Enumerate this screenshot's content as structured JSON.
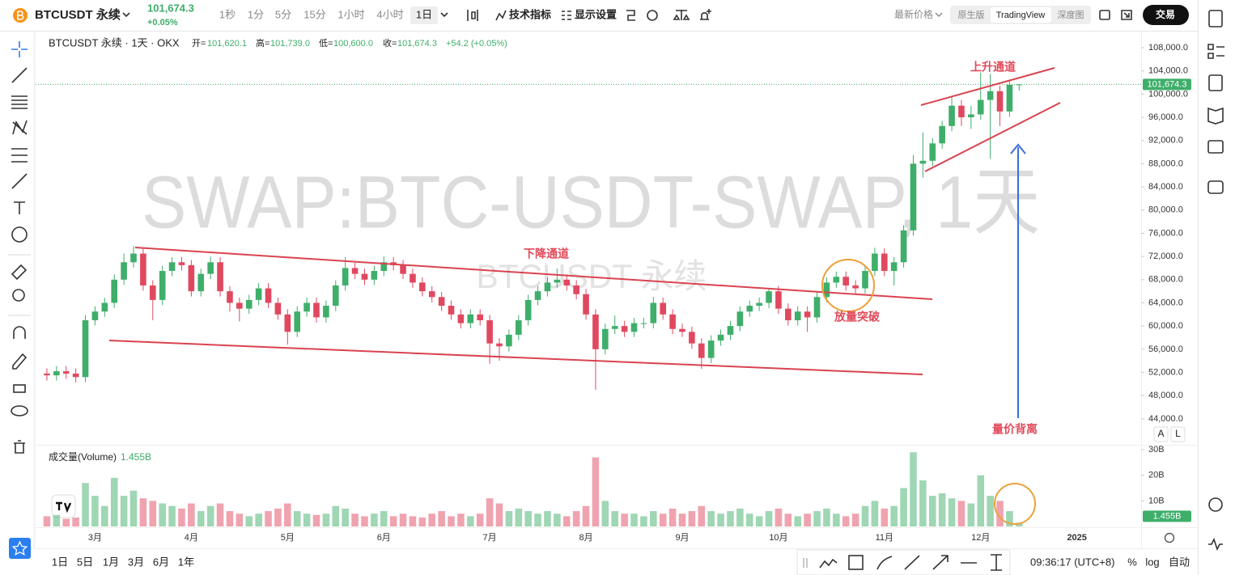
{
  "header": {
    "symbol": "BTCUSDT 永续",
    "price": "101,674.3",
    "change": "+0.05%",
    "intervals": [
      "1秒",
      "1分",
      "5分",
      "15分",
      "1小时",
      "4小时",
      "1日"
    ],
    "indicators": "技术指标",
    "display_settings": "显示设置",
    "price_type": "最新价格",
    "views": [
      "原生版",
      "TradingView",
      "深度图"
    ],
    "trade": "交易"
  },
  "footer": {
    "ranges": [
      "1日",
      "5日",
      "1月",
      "3月",
      "6月",
      "1年"
    ],
    "time": "09:36:17 (UTC+8)",
    "percent": "%",
    "log": "log",
    "auto": "自动"
  },
  "chart_data": {
    "type": "candlestick",
    "legend": {
      "title": "BTCUSDT 永续 · 1天 · OKX",
      "fields": [
        {
          "label": "开=",
          "value": "101,620.1"
        },
        {
          "label": "高=",
          "value": "101,739.0"
        },
        {
          "label": "低=",
          "value": "100,600.0"
        },
        {
          "label": "收=",
          "value": "101,674.3"
        }
      ],
      "change": "+54.2 (+0.05%)"
    },
    "watermark": [
      "SWAP:BTC-USDT-SWAP, 1天",
      "BTCUSDT 永续"
    ],
    "annotations": {
      "rising_channel": "上升通道",
      "falling_channel": "下降通道",
      "volume_breakout": "放量突破",
      "divergence": "量价背离"
    },
    "scale_buttons": [
      "A",
      "L"
    ],
    "up_color": "#3fae6a",
    "down_color": "#e0485f",
    "categories": [
      null,
      null,
      null,
      null,
      null,
      "3月",
      null,
      null,
      null,
      null,
      null,
      null,
      null,
      null,
      null,
      "4月",
      null,
      null,
      null,
      null,
      null,
      null,
      null,
      null,
      null,
      "5月",
      null,
      null,
      null,
      null,
      null,
      null,
      null,
      null,
      null,
      "6月",
      null,
      null,
      null,
      null,
      null,
      null,
      null,
      null,
      null,
      null,
      "7月",
      null,
      null,
      null,
      null,
      null,
      null,
      null,
      null,
      null,
      "8月",
      null,
      null,
      null,
      null,
      null,
      null,
      null,
      null,
      null,
      "9月",
      null,
      null,
      null,
      null,
      null,
      null,
      null,
      null,
      null,
      "10月",
      null,
      null,
      null,
      null,
      null,
      null,
      null,
      null,
      null,
      null,
      "11月",
      null,
      null,
      null,
      null,
      null,
      null,
      null,
      null,
      null,
      "12月",
      null,
      null,
      null,
      null,
      null,
      null,
      null,
      null,
      null,
      "2025",
      null,
      null,
      null,
      null,
      null,
      null
    ],
    "open": [
      51800,
      51500,
      52200,
      51800,
      51200,
      61000,
      62500,
      64000,
      68000,
      71000,
      72500,
      67000,
      64500,
      69500,
      71000,
      70500,
      66000,
      69000,
      71000,
      66000,
      64000,
      63000,
      64500,
      66500,
      64000,
      62000,
      59000,
      62500,
      64000,
      61500,
      63500,
      67000,
      70000,
      69000,
      68000,
      69500,
      71000,
      70500,
      69000,
      67500,
      66000,
      65000,
      63500,
      62000,
      60500,
      62000,
      61000,
      57000,
      56500,
      58500,
      61000,
      64500,
      66000,
      67500,
      68000,
      67000,
      65500,
      62000,
      56000,
      59500,
      60000,
      59000,
      60500,
      60500,
      64000,
      62000,
      59500,
      59000,
      57000,
      54500,
      57500,
      58500,
      60000,
      62500,
      63500,
      64000,
      66000,
      63000,
      61000,
      62500,
      61500,
      65000,
      67500,
      68500,
      67000,
      66500,
      69500,
      72500,
      69500,
      71000,
      76500,
      88000,
      88500,
      91500,
      94500,
      98000,
      96000,
      96500,
      99000,
      100500,
      97000,
      101620.1,
      null,
      null,
      null,
      null,
      null,
      null,
      null,
      null,
      null,
      null,
      null,
      null
    ],
    "high": [
      52700,
      53100,
      53100,
      52700,
      61900,
      63400,
      64900,
      68900,
      72500,
      73800,
      73400,
      67900,
      70400,
      71900,
      71900,
      71400,
      69900,
      72000,
      71900,
      66900,
      64900,
      65400,
      67400,
      67400,
      64900,
      62900,
      63400,
      64900,
      64900,
      64400,
      67900,
      71900,
      70900,
      69900,
      70400,
      72000,
      71900,
      71400,
      69900,
      68400,
      66900,
      65900,
      64400,
      62900,
      62900,
      62900,
      61900,
      57900,
      59400,
      61900,
      65400,
      66900,
      68400,
      69900,
      68900,
      67900,
      66400,
      62900,
      60400,
      61800,
      60900,
      61400,
      61400,
      65000,
      64900,
      62900,
      60400,
      59900,
      57900,
      58400,
      59400,
      60900,
      63400,
      64400,
      64900,
      66500,
      66900,
      63900,
      63400,
      63400,
      65900,
      68400,
      69400,
      69400,
      67900,
      70400,
      73500,
      73400,
      71900,
      77400,
      89500,
      93400,
      92400,
      95400,
      99500,
      99000,
      98000,
      103700,
      103500,
      101400,
      102500,
      101739.0,
      null,
      null,
      null,
      null,
      null,
      null,
      null,
      null,
      null,
      null,
      null,
      null
    ],
    "low": [
      50600,
      50600,
      50900,
      50300,
      50300,
      60100,
      61600,
      63100,
      67100,
      70100,
      66100,
      61000,
      63600,
      68600,
      69600,
      65100,
      65100,
      68100,
      65100,
      62500,
      60800,
      62100,
      63600,
      63100,
      61100,
      56800,
      58100,
      61600,
      60600,
      60600,
      62600,
      66100,
      68100,
      67100,
      67100,
      68600,
      69600,
      68100,
      66600,
      65100,
      64100,
      62600,
      61100,
      59600,
      59600,
      60100,
      53500,
      54000,
      55600,
      57600,
      60100,
      63600,
      65100,
      66600,
      66100,
      64600,
      61100,
      49000,
      55100,
      58600,
      58100,
      58100,
      59600,
      59600,
      61100,
      58600,
      58100,
      56100,
      52600,
      53600,
      56600,
      57600,
      59100,
      61600,
      62600,
      63100,
      62100,
      60100,
      60100,
      59000,
      60600,
      64100,
      66600,
      66100,
      65600,
      65600,
      68600,
      68600,
      67000,
      70100,
      75600,
      85600,
      87600,
      90600,
      93600,
      94500,
      94000,
      95600,
      88800,
      94500,
      96100,
      100600.0,
      null,
      null,
      null,
      null,
      null,
      null,
      null,
      null,
      null,
      null,
      null,
      null
    ],
    "close": [
      51500,
      52200,
      51800,
      51200,
      61000,
      62500,
      64000,
      68000,
      71000,
      72500,
      67000,
      64500,
      69500,
      71000,
      70500,
      66000,
      69000,
      71000,
      66000,
      64000,
      63000,
      64500,
      66500,
      64000,
      62000,
      59000,
      62500,
      64000,
      61500,
      63500,
      67000,
      70000,
      69000,
      68000,
      69500,
      71000,
      70500,
      69000,
      67500,
      66000,
      65000,
      63500,
      62000,
      60500,
      62000,
      61000,
      57000,
      56500,
      58500,
      61000,
      64500,
      66000,
      67500,
      68000,
      67000,
      65500,
      62000,
      56000,
      59500,
      60000,
      59000,
      60500,
      60500,
      64000,
      62000,
      59500,
      59000,
      57000,
      54500,
      57500,
      58500,
      60000,
      62500,
      63500,
      64000,
      66000,
      63000,
      61000,
      62500,
      61500,
      65000,
      67500,
      68500,
      67000,
      66500,
      69500,
      72500,
      69500,
      71000,
      76500,
      88000,
      88500,
      91500,
      94500,
      98000,
      96000,
      96500,
      99000,
      100500,
      97000,
      101620.1,
      101674.3,
      null,
      null,
      null,
      null,
      null,
      null,
      null,
      null,
      null,
      null,
      null,
      null
    ],
    "ylim": [
      39800,
      110650
    ],
    "yticks": [
      {
        "value": 108000,
        "label": "108,000.0"
      },
      {
        "value": 104000,
        "label": "104,000.0"
      },
      {
        "value": 100000,
        "label": "100,000.0"
      },
      {
        "value": 96000,
        "label": "96,000.0"
      },
      {
        "value": 92000,
        "label": "92,000.0"
      },
      {
        "value": 88000,
        "label": "88,000.0"
      },
      {
        "value": 84000,
        "label": "84,000.0"
      },
      {
        "value": 80000,
        "label": "80,000.0"
      },
      {
        "value": 76000,
        "label": "76,000.0"
      },
      {
        "value": 72000,
        "label": "72,000.0"
      },
      {
        "value": 68000,
        "label": "68,000.0"
      },
      {
        "value": 64000,
        "label": "64,000.0"
      },
      {
        "value": 60000,
        "label": "60,000.0"
      },
      {
        "value": 56000,
        "label": "56,000.0"
      },
      {
        "value": 52000,
        "label": "52,000.0"
      },
      {
        "value": 48000,
        "label": "48,000.0"
      },
      {
        "value": 44000,
        "label": "44,000.0"
      }
    ],
    "last_price": {
      "value": 101674.3,
      "label": "101,674.3"
    },
    "volume": {
      "name": "成交量(Volume)",
      "last_label": "1.455B",
      "values": [
        4,
        4.5,
        3,
        3.5,
        17,
        12,
        8,
        19,
        12,
        14,
        11,
        10,
        9,
        8,
        7,
        9,
        6,
        8,
        9,
        6,
        5,
        4,
        5,
        6,
        7,
        9,
        6,
        5,
        4.5,
        5,
        8,
        7,
        5,
        4,
        5,
        6,
        4,
        5,
        4,
        3.5,
        5,
        6,
        4,
        5,
        4,
        5,
        11,
        9,
        6,
        7,
        6,
        5,
        6,
        5,
        4,
        6,
        8,
        27,
        10,
        6,
        5,
        5,
        4,
        6,
        5,
        7,
        5,
        6,
        8,
        6,
        5,
        6,
        7,
        5,
        4,
        6,
        7,
        5,
        4,
        5,
        6,
        7,
        5,
        4,
        5,
        8,
        10,
        7,
        8,
        15,
        29,
        18,
        12,
        13,
        11,
        10,
        9,
        20,
        12,
        10,
        6,
        1.455,
        null,
        null,
        null,
        null,
        null,
        null,
        null,
        null,
        null,
        null,
        null,
        null
      ],
      "ylim": [
        0,
        31.3
      ],
      "yticks": [
        {
          "value": 30,
          "label": "30B"
        },
        {
          "value": 20,
          "label": "20B"
        },
        {
          "value": 10,
          "label": "10B"
        }
      ]
    }
  }
}
